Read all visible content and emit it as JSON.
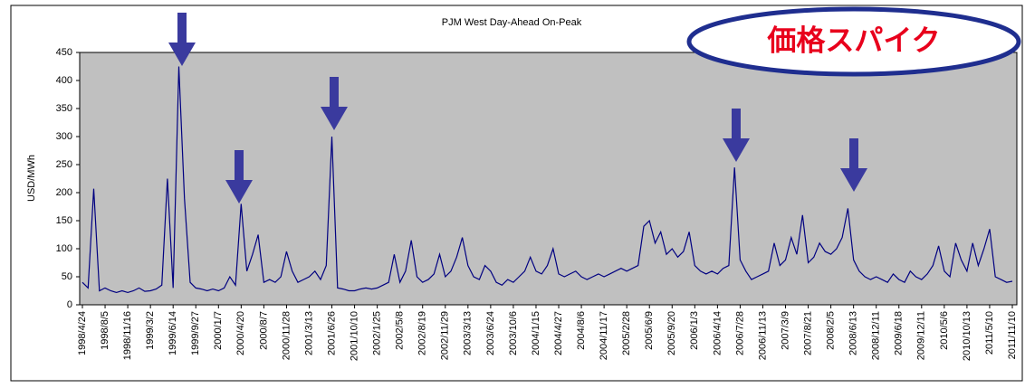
{
  "chart_data": {
    "type": "line",
    "title": "PJM West Day-Ahead On-Peak",
    "y_label": "USD/MWh",
    "annotation": "価格スパイク",
    "categories": [
      "1998/4/24",
      null,
      null,
      null,
      "1998/8/5",
      null,
      null,
      null,
      "1998/11/16",
      null,
      null,
      null,
      "1999/3/2",
      null,
      null,
      null,
      "1999/6/14",
      null,
      null,
      null,
      "1999/9/27",
      null,
      null,
      null,
      "2000/1/7",
      null,
      null,
      null,
      "2000/4/20",
      null,
      null,
      null,
      "2000/8/7",
      null,
      null,
      null,
      "2000/11/28",
      null,
      null,
      null,
      "2001/3/13",
      null,
      null,
      null,
      "2001/6/26",
      null,
      null,
      null,
      "2001/10/10",
      null,
      null,
      null,
      "2002/1/25",
      null,
      null,
      null,
      "2002/5/8",
      null,
      null,
      null,
      "2002/8/19",
      null,
      null,
      null,
      "2002/11/29",
      null,
      null,
      null,
      "2003/3/13",
      null,
      null,
      null,
      "2003/6/24",
      null,
      null,
      null,
      "2003/10/6",
      null,
      null,
      null,
      "2004/1/15",
      null,
      null,
      null,
      "2004/4/27",
      null,
      null,
      null,
      "2004/8/6",
      null,
      null,
      null,
      "2004/11/17",
      null,
      null,
      null,
      "2005/2/28",
      null,
      null,
      null,
      "2005/6/9",
      null,
      null,
      null,
      "2005/9/20",
      null,
      null,
      null,
      "2006/1/3",
      null,
      null,
      null,
      "2006/4/14",
      null,
      null,
      null,
      "2006/7/28",
      null,
      null,
      null,
      "2006/11/13",
      null,
      null,
      null,
      "2007/3/9",
      null,
      null,
      null,
      "2007/8/21",
      null,
      null,
      null,
      "2008/2/5",
      null,
      null,
      null,
      "2008/6/13",
      null,
      null,
      null,
      "2008/12/11",
      null,
      null,
      null,
      "2009/6/18",
      null,
      null,
      null,
      "2009/12/11",
      null,
      null,
      null,
      "2010/5/6",
      null,
      null,
      null,
      "2010/10/13",
      null,
      null,
      null,
      "2011/5/10",
      null,
      null,
      null,
      "2011/11/10"
    ],
    "series": [
      {
        "name": "PJM West",
        "color": "#000080",
        "values": [
          40,
          30,
          207,
          25,
          30,
          25,
          22,
          25,
          22,
          25,
          30,
          24,
          25,
          28,
          35,
          225,
          30,
          425,
          190,
          40,
          30,
          28,
          25,
          28,
          25,
          30,
          50,
          35,
          180,
          60,
          90,
          125,
          40,
          45,
          40,
          50,
          95,
          60,
          40,
          45,
          50,
          60,
          45,
          70,
          300,
          30,
          28,
          25,
          25,
          28,
          30,
          28,
          30,
          35,
          40,
          90,
          40,
          60,
          115,
          50,
          40,
          45,
          55,
          90,
          50,
          60,
          85,
          120,
          70,
          50,
          45,
          70,
          60,
          40,
          35,
          45,
          40,
          50,
          60,
          85,
          60,
          55,
          70,
          100,
          55,
          50,
          55,
          60,
          50,
          45,
          50,
          55,
          50,
          55,
          60,
          65,
          60,
          65,
          70,
          140,
          150,
          110,
          130,
          90,
          100,
          85,
          95,
          130,
          70,
          60,
          55,
          60,
          55,
          65,
          70,
          245,
          80,
          60,
          45,
          50,
          55,
          60,
          110,
          70,
          80,
          120,
          90,
          160,
          75,
          85,
          110,
          95,
          90,
          100,
          120,
          172,
          80,
          60,
          50,
          45,
          50,
          45,
          40,
          55,
          45,
          40,
          60,
          50,
          45,
          55,
          70,
          105,
          60,
          50,
          110,
          80,
          60,
          110,
          70,
          100,
          135,
          50,
          45,
          40,
          42
        ]
      }
    ],
    "ylim": [
      0,
      450
    ],
    "yticks": [
      0,
      50,
      100,
      150,
      200,
      250,
      300,
      350,
      400,
      450
    ],
    "grid": false,
    "plot_background": "#c0c0c0"
  }
}
